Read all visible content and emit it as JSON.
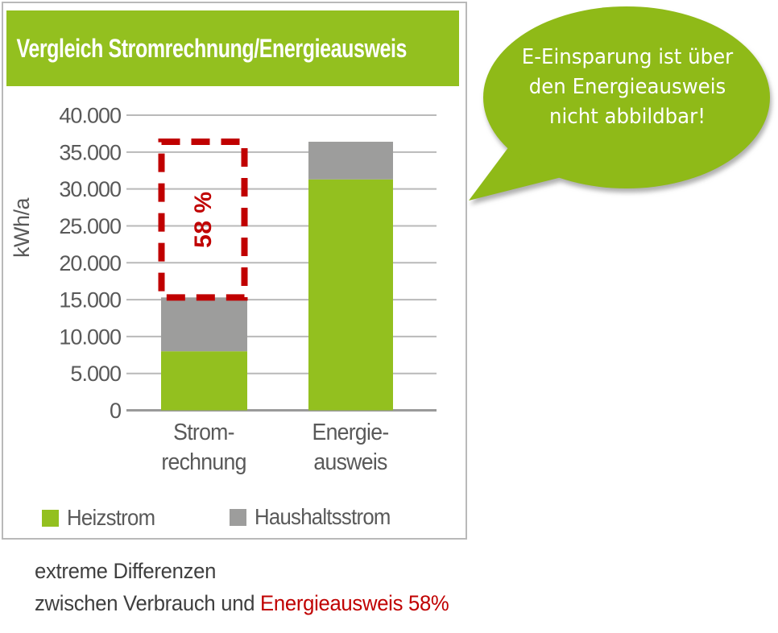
{
  "colors": {
    "green": "#93c01f",
    "bar-gray": "#9d9d9c",
    "red": "#c00000",
    "bubble": "#8fba18",
    "grid": "#b9b9b9",
    "axis": "#9a9a9a",
    "tick": "#595959",
    "caption": "#3f3f3f",
    "panel-border": "#b9b9b9"
  },
  "chart_data": {
    "type": "bar",
    "stacked": true,
    "title": "Vergleich Stromrechnung/Energieausweis",
    "ylabel": "kWh/a",
    "ylim": [
      0,
      40000
    ],
    "ytick_step": 5000,
    "yticks": [
      {
        "value": 40000,
        "label": "40.000"
      },
      {
        "value": 35000,
        "label": "35.000"
      },
      {
        "value": 30000,
        "label": "30.000"
      },
      {
        "value": 25000,
        "label": "25.000"
      },
      {
        "value": 20000,
        "label": "20.000"
      },
      {
        "value": 15000,
        "label": "15.000"
      },
      {
        "value": 10000,
        "label": "10.000"
      },
      {
        "value": 5000,
        "label": "5.000"
      },
      {
        "value": 0,
        "label": "0"
      }
    ],
    "categories": [
      "Stromrechnung",
      "Energieausweis"
    ],
    "category_tick_lines": [
      [
        "Strom-",
        "rechnung"
      ],
      [
        "Energie-",
        "ausweis"
      ]
    ],
    "series": [
      {
        "name": "Heizstrom",
        "color": "#93c01f",
        "values": [
          8000,
          31300
        ]
      },
      {
        "name": "Haushaltsstrom",
        "color": "#9d9d9c",
        "values": [
          7300,
          5100
        ]
      }
    ],
    "totals": [
      15300,
      36400
    ],
    "grid": true,
    "legend_position": "bottom",
    "annotation": {
      "label": "58 %",
      "category": "Stromrechnung",
      "value_from": 15300,
      "value_to": 36400,
      "style": "dashed-box",
      "color": "#c00000"
    }
  },
  "bubble": {
    "lines": [
      "E-Einsparung ist über",
      "den Energieausweis",
      "nicht abbildbar!"
    ],
    "text_color": "#ffffff"
  },
  "caption": {
    "line1": "extreme Differenzen",
    "line2_gray": "zwischen Verbrauch und ",
    "line2_red": "Energieausweis 58%"
  }
}
